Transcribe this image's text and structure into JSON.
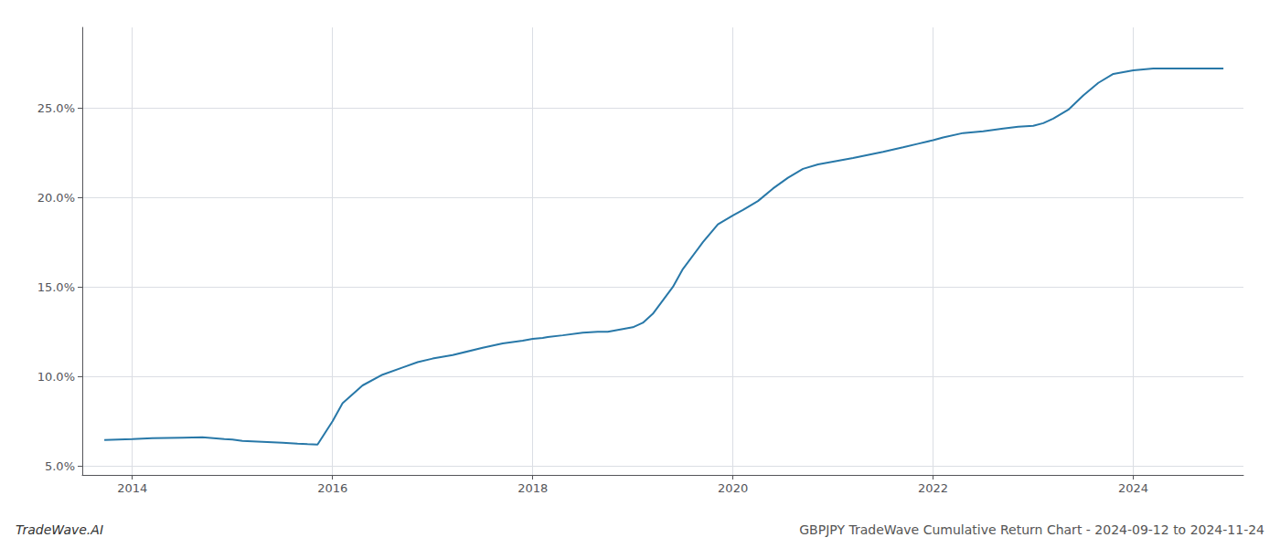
{
  "chart_data": {
    "type": "line",
    "title": "GBPJPY TradeWave Cumulative Return Chart - 2024-09-12 to 2024-11-24",
    "annotations": [
      "TradeWave.AI"
    ],
    "color": "#2878a8",
    "x": [
      2013.72,
      2014.0,
      2014.2,
      2014.5,
      2014.7,
      2014.92,
      2015.0,
      2015.1,
      2015.3,
      2015.5,
      2015.65,
      2015.75,
      2015.85,
      2016.0,
      2016.1,
      2016.3,
      2016.5,
      2016.7,
      2016.85,
      2017.0,
      2017.2,
      2017.5,
      2017.7,
      2017.9,
      2018.0,
      2018.1,
      2018.15,
      2018.3,
      2018.5,
      2018.65,
      2018.75,
      2018.9,
      2019.0,
      2019.1,
      2019.2,
      2019.4,
      2019.5,
      2019.7,
      2019.85,
      2020.0,
      2020.1,
      2020.25,
      2020.4,
      2020.55,
      2020.7,
      2020.85,
      2021.0,
      2021.2,
      2021.5,
      2021.7,
      2021.85,
      2022.0,
      2022.1,
      2022.3,
      2022.5,
      2022.7,
      2022.85,
      2023.0,
      2023.1,
      2023.2,
      2023.35,
      2023.5,
      2023.65,
      2023.8,
      2024.0,
      2024.2,
      2024.5,
      2024.7,
      2024.9
    ],
    "values": [
      6.45,
      6.5,
      6.55,
      6.58,
      6.6,
      6.5,
      6.48,
      6.4,
      6.35,
      6.3,
      6.25,
      6.22,
      6.2,
      7.5,
      8.5,
      9.5,
      10.1,
      10.5,
      10.8,
      11.0,
      11.2,
      11.6,
      11.85,
      12.0,
      12.1,
      12.15,
      12.2,
      12.3,
      12.45,
      12.5,
      12.5,
      12.65,
      12.75,
      13.0,
      13.5,
      15.0,
      16.0,
      17.5,
      18.5,
      19.0,
      19.3,
      19.8,
      20.5,
      21.1,
      21.6,
      21.85,
      22.0,
      22.2,
      22.55,
      22.8,
      23.0,
      23.2,
      23.35,
      23.6,
      23.7,
      23.85,
      23.95,
      24.0,
      24.15,
      24.4,
      24.9,
      25.7,
      26.4,
      26.9,
      27.1,
      27.2,
      27.2,
      27.2,
      27.2
    ],
    "xlim": [
      2013.5,
      2025.1
    ],
    "ylim": [
      4.5,
      29.5
    ],
    "xticks": [
      2014,
      2016,
      2018,
      2020,
      2022,
      2024
    ],
    "yticks": [
      {
        "value": 5.0,
        "label": "5.0%"
      },
      {
        "value": 10.0,
        "label": "10.0%"
      },
      {
        "value": 15.0,
        "label": "15.0%"
      },
      {
        "value": 20.0,
        "label": "20.0%"
      },
      {
        "value": 25.0,
        "label": "25.0%"
      }
    ],
    "grid": true
  }
}
